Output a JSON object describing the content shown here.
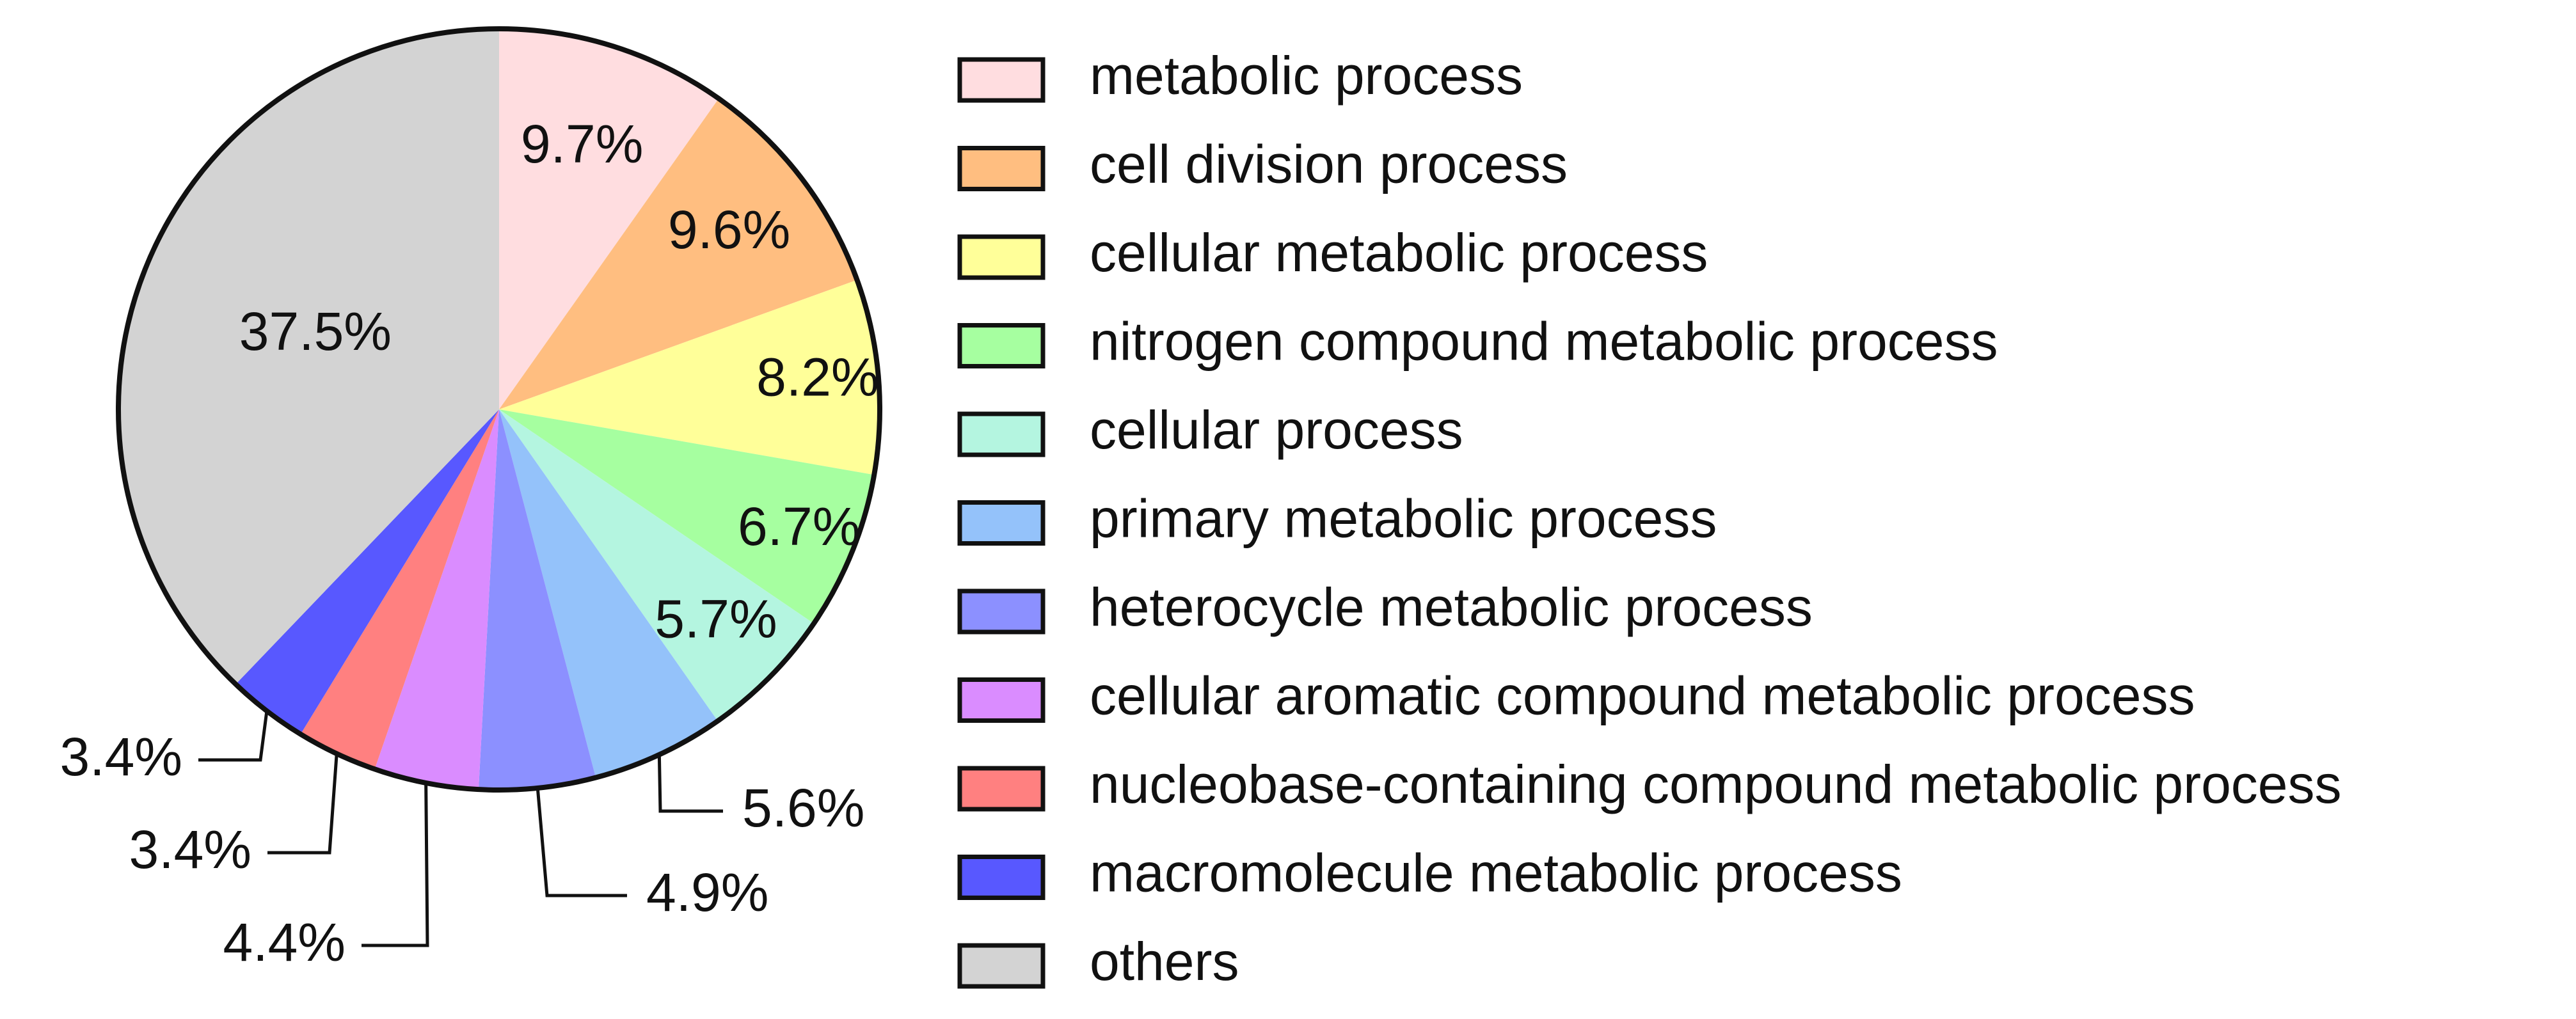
{
  "chart_data": {
    "type": "pie",
    "start": "top",
    "direction": "clockwise",
    "legend_position": "right",
    "slices": [
      {
        "label": "metabolic process",
        "value": 9.7,
        "value_label": "9.7%",
        "color": "#FFDDE0"
      },
      {
        "label": "cell division process",
        "value": 9.6,
        "value_label": "9.6%",
        "color": "#FFBE80"
      },
      {
        "label": "cellular metabolic process",
        "value": 8.2,
        "value_label": "8.2%",
        "color": "#FFFF99"
      },
      {
        "label": "nitrogen compound metabolic process",
        "value": 6.7,
        "value_label": "6.7%",
        "color": "#A6FFA0"
      },
      {
        "label": "cellular process",
        "value": 5.7,
        "value_label": "5.7%",
        "color": "#B4F5E0"
      },
      {
        "label": "primary metabolic process",
        "value": 5.6,
        "value_label": "5.6%",
        "color": "#94C2FA"
      },
      {
        "label": "heterocycle metabolic process",
        "value": 4.9,
        "value_label": "4.9%",
        "color": "#8C90FF"
      },
      {
        "label": "cellular aromatic compound metabolic process",
        "value": 4.4,
        "value_label": "4.4%",
        "color": "#DA8CFF"
      },
      {
        "label": "nucleobase-containing compound metabolic process",
        "value": 3.4,
        "value_label": "3.4%",
        "color": "#FF8080"
      },
      {
        "label": "macromolecule metabolic process",
        "value": 3.4,
        "value_label": "3.4%",
        "color": "#5858FF"
      },
      {
        "label": "others",
        "value": 37.5,
        "value_label": "37.5%",
        "color": "#D3D3D3"
      }
    ]
  }
}
